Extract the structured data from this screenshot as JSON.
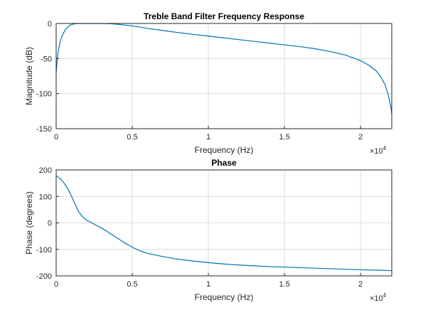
{
  "chart_data": [
    {
      "type": "line",
      "title": "Treble Band Filter Frequency Response",
      "xlabel": "Frequency (Hz)",
      "ylabel": "Magnitude (dB)",
      "x_exponent_label": "×10",
      "x_exponent": "4",
      "xlim": [
        0,
        22050
      ],
      "ylim": [
        -150,
        0
      ],
      "xticks": [
        0,
        5000,
        10000,
        15000,
        20000
      ],
      "xtick_labels": [
        "0",
        "0.5",
        "1",
        "1.5",
        "2"
      ],
      "yticks": [
        -150,
        -100,
        -50,
        0
      ],
      "ytick_labels": [
        "-150",
        "-100",
        "-50",
        "0"
      ],
      "grid": true,
      "series": [
        {
          "color": "#0072BD",
          "x": [
            0,
            100,
            200,
            300,
            450,
            600,
            800,
            1000,
            1200,
            1500,
            2000,
            2500,
            3000,
            3500,
            4000,
            5000,
            6000,
            7000,
            8000,
            9000,
            10000,
            11000,
            12000,
            13000,
            14000,
            15000,
            16000,
            17000,
            18000,
            19000,
            19500,
            20000,
            20500,
            21000,
            21300,
            21600,
            21800,
            22000,
            22050
          ],
          "y": [
            -70,
            -45,
            -32,
            -23,
            -15,
            -9,
            -4,
            -1.5,
            -0.5,
            0,
            0,
            0,
            0,
            -0.3,
            -1,
            -3.5,
            -7,
            -10,
            -13,
            -15.5,
            -18,
            -20.5,
            -23,
            -25.5,
            -28,
            -30.5,
            -33,
            -36,
            -40,
            -45,
            -49,
            -53,
            -59,
            -67,
            -75,
            -87,
            -100,
            -120,
            -130
          ]
        }
      ]
    },
    {
      "type": "line",
      "title": "Phase",
      "xlabel": "Frequency (Hz)",
      "ylabel": "Phase (degrees)",
      "x_exponent_label": "×10",
      "x_exponent": "4",
      "xlim": [
        0,
        22050
      ],
      "ylim": [
        -200,
        200
      ],
      "xticks": [
        0,
        5000,
        10000,
        15000,
        20000
      ],
      "xtick_labels": [
        "0",
        "0.5",
        "1",
        "1.5",
        "2"
      ],
      "yticks": [
        -200,
        -100,
        0,
        100,
        200
      ],
      "ytick_labels": [
        "-200",
        "-100",
        "0",
        "100",
        "200"
      ],
      "grid": true,
      "series": [
        {
          "color": "#0072BD",
          "x": [
            0,
            250,
            500,
            750,
            1000,
            1250,
            1500,
            1750,
            2000,
            2500,
            3000,
            3500,
            4000,
            4500,
            5000,
            5500,
            6000,
            7000,
            8000,
            9000,
            10000,
            11000,
            12000,
            13000,
            14000,
            15000,
            16000,
            17000,
            18000,
            19000,
            20000,
            21000,
            22000,
            22050
          ],
          "y": [
            178,
            168,
            152,
            130,
            102,
            70,
            40,
            22,
            10,
            -5,
            -20,
            -38,
            -57,
            -75,
            -92,
            -105,
            -115,
            -127,
            -137,
            -144,
            -150,
            -155,
            -159,
            -162,
            -165,
            -167,
            -169,
            -171,
            -173,
            -175,
            -177,
            -178.5,
            -180,
            -180
          ]
        }
      ]
    }
  ]
}
